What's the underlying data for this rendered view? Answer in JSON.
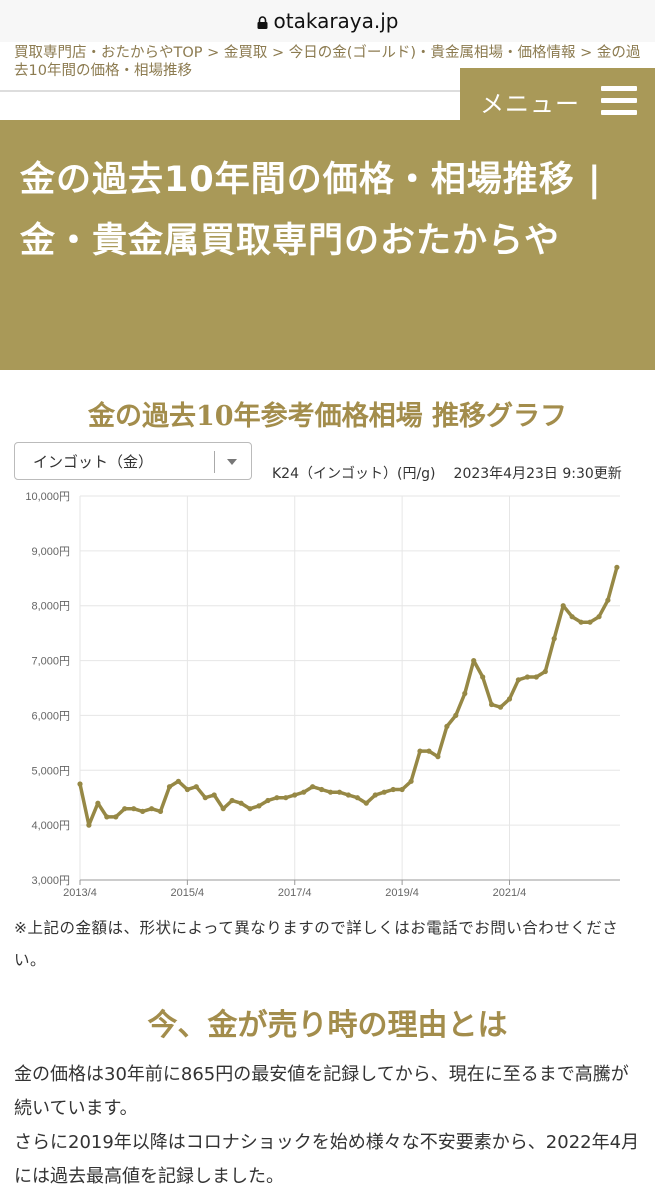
{
  "browser": {
    "url": "otakaraya.jp",
    "lock_icon": "lock-icon"
  },
  "breadcrumb": "買取専門店・おたからやTOP > 金買取 > 今日の金(ゴールド)・貴金属相場・価格情報 > 金の過去10年間の価格・相場推移",
  "menu": {
    "label": "メニュー",
    "icon": "hamburger-icon"
  },
  "hero": {
    "title": "金の過去10年間の価格・相場推移 | 金・貴金属買取専門のおたからや"
  },
  "section1": {
    "title": "金の過去10年参考価格相場 推移グラフ"
  },
  "select": {
    "value": "インゴット（金）"
  },
  "chart_info": {
    "label": "K24（インゴット）(円/g)",
    "updated": "2023年4月23日 9:30更新"
  },
  "chart_data": {
    "type": "line",
    "title": "",
    "xlabel": "",
    "ylabel": "",
    "x_ticks": [
      "2013/4",
      "2015/4",
      "2017/4",
      "2019/4",
      "2021/4"
    ],
    "y_ticks": [
      "3,000円",
      "4,000円",
      "5,000円",
      "6,000円",
      "7,000円",
      "8,000円",
      "9,000円",
      "10,000円"
    ],
    "ylim": [
      3000,
      10000
    ],
    "grid": true,
    "colors": {
      "line": "#968845"
    },
    "series": [
      {
        "x": [
          "2013/4",
          "2013/6",
          "2013/8",
          "2013/10",
          "2013/12",
          "2014/2",
          "2014/4",
          "2014/6",
          "2014/8",
          "2014/10",
          "2014/12",
          "2015/2",
          "2015/4",
          "2015/6",
          "2015/8",
          "2015/10",
          "2015/12",
          "2016/2",
          "2016/4",
          "2016/6",
          "2016/8",
          "2016/10",
          "2016/12",
          "2017/2",
          "2017/4",
          "2017/6",
          "2017/8",
          "2017/10",
          "2017/12",
          "2018/2",
          "2018/4",
          "2018/6",
          "2018/8",
          "2018/10",
          "2018/12",
          "2019/2",
          "2019/4",
          "2019/6",
          "2019/8",
          "2019/10",
          "2019/12",
          "2020/2",
          "2020/4",
          "2020/6",
          "2020/8",
          "2020/10",
          "2020/12",
          "2021/2",
          "2021/4",
          "2021/6",
          "2021/8",
          "2021/10",
          "2021/12",
          "2022/2",
          "2022/4",
          "2022/6",
          "2022/8",
          "2022/10",
          "2022/12",
          "2023/2",
          "2023/4"
        ],
        "values": [
          4750,
          4000,
          4400,
          4150,
          4150,
          4300,
          4300,
          4250,
          4300,
          4250,
          4700,
          4800,
          4650,
          4700,
          4500,
          4550,
          4300,
          4450,
          4400,
          4300,
          4350,
          4450,
          4500,
          4500,
          4550,
          4600,
          4700,
          4650,
          4600,
          4600,
          4550,
          4500,
          4400,
          4550,
          4600,
          4650,
          4650,
          4800,
          5350,
          5350,
          5250,
          5800,
          6000,
          6400,
          7000,
          6700,
          6200,
          6150,
          6300,
          6650,
          6700,
          6700,
          6800,
          7400,
          8000,
          7800,
          7700,
          7700,
          7800,
          8100,
          8700
        ]
      }
    ]
  },
  "note": "※上記の金額は、形状によって異なりますので詳しくはお電話でお問い合わせください。",
  "section2": {
    "title": "今、金が売り時の理由とは"
  },
  "body": {
    "p1": "金の価格は30年前に865円の最安値を記録してから、現在に至るまで高騰が続いています。",
    "p2": "さらに2019年以降はコロナショックを始め様々な不安要素から、2022年4月には過去最高値を記録しました。"
  }
}
